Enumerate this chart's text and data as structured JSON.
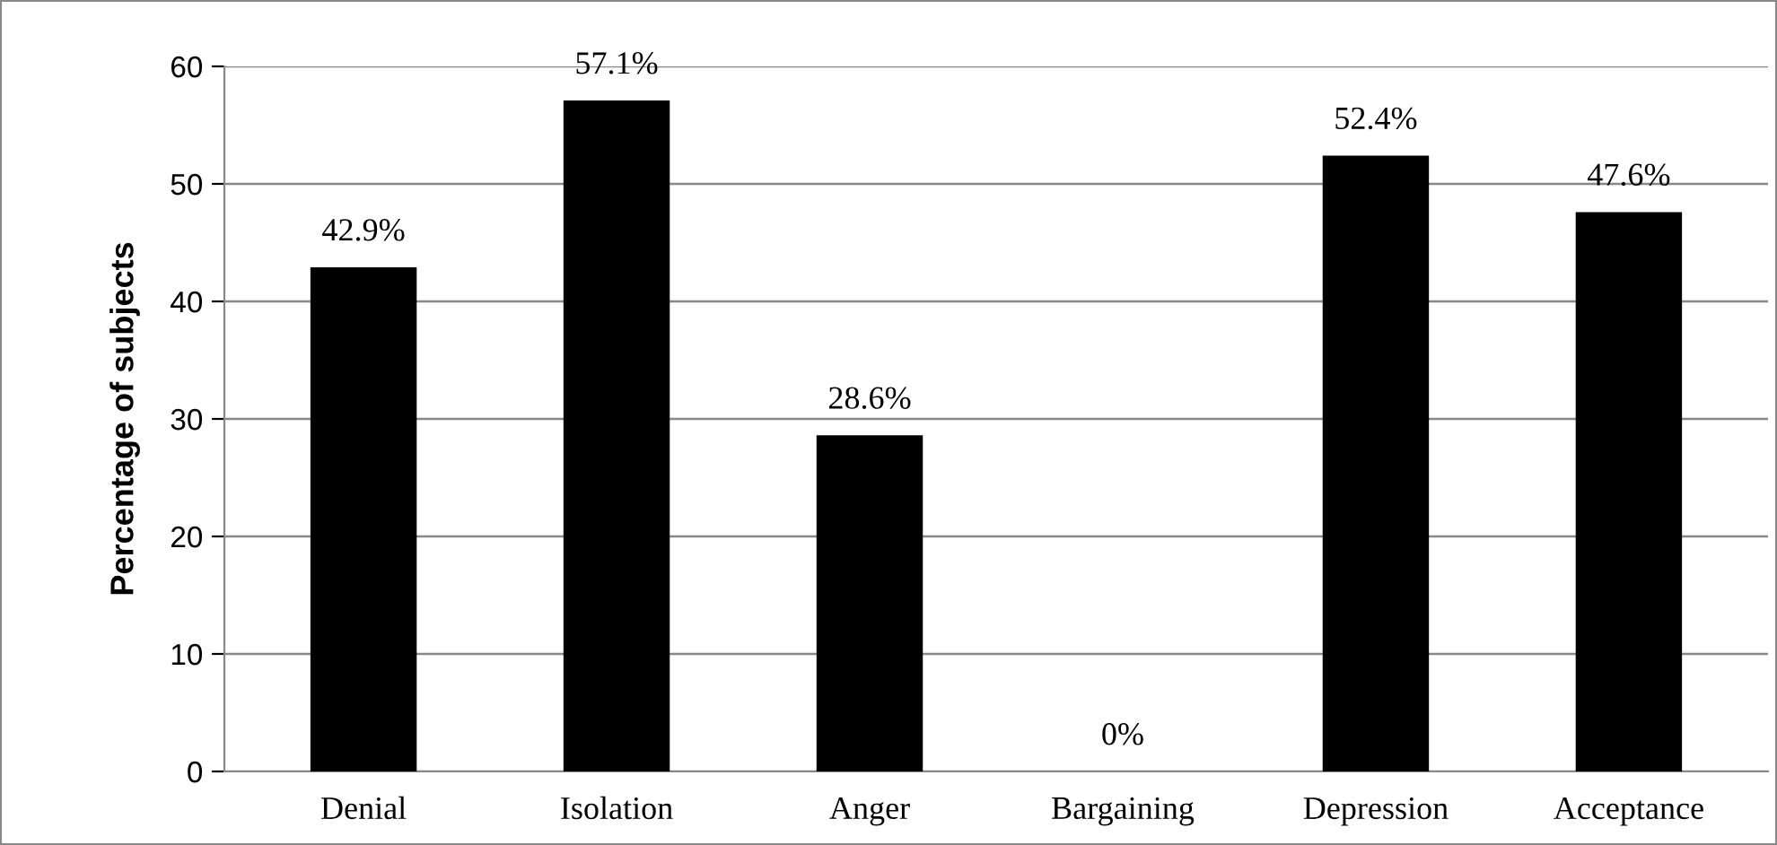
{
  "chart_data": {
    "type": "bar",
    "ylabel": "Percentage of subjects",
    "categories": [
      "Denial",
      "Isolation",
      "Anger",
      "Bargaining",
      "Depression",
      "Acceptance"
    ],
    "values": [
      42.9,
      57.1,
      28.6,
      0,
      52.4,
      47.6
    ],
    "value_labels": [
      "42.9%",
      "57.1%",
      "28.6%",
      "0%",
      "52.4%",
      "47.6%"
    ],
    "color": "#000000",
    "ylim": [
      0,
      60
    ],
    "yticks": [
      0,
      10,
      20,
      30,
      40,
      50,
      60
    ],
    "grid": "y",
    "legend": false
  }
}
